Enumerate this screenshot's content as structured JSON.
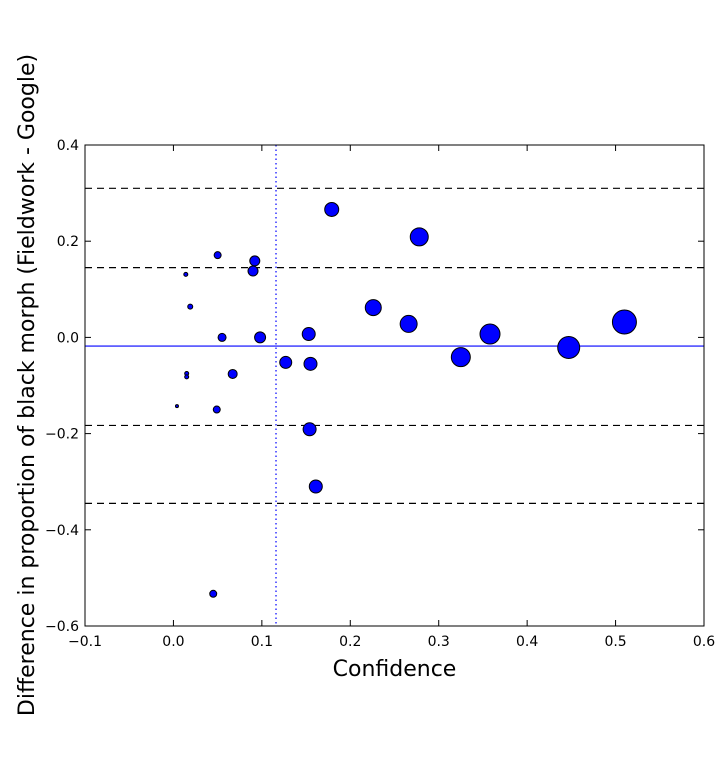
{
  "chart_data": {
    "type": "scatter",
    "title": "",
    "xlabel": "Confidence",
    "ylabel": "Difference in proportion of black morph (Fieldwork - Google)",
    "xlim": [
      -0.1,
      0.6
    ],
    "ylim": [
      -0.6,
      0.4
    ],
    "x_ticks": [
      -0.1,
      0.0,
      0.1,
      0.2,
      0.3,
      0.4,
      0.5,
      0.6
    ],
    "x_tick_labels": [
      "−0.1",
      "0.0",
      "0.1",
      "0.2",
      "0.3",
      "0.4",
      "0.5",
      "0.6"
    ],
    "y_ticks": [
      -0.6,
      -0.4,
      -0.2,
      0.0,
      0.2,
      0.4
    ],
    "y_tick_labels": [
      "−0.6",
      "−0.4",
      "−0.2",
      "0.0",
      "0.2",
      "0.4"
    ],
    "grid": false,
    "marker_color": "#0000ff",
    "points": [
      {
        "x": 0.004,
        "y": -0.143,
        "size": 1.5
      },
      {
        "x": 0.014,
        "y": 0.131,
        "size": 2
      },
      {
        "x": 0.015,
        "y": -0.075,
        "size": 2
      },
      {
        "x": 0.015,
        "y": -0.082,
        "size": 2
      },
      {
        "x": 0.019,
        "y": 0.064,
        "size": 2.5
      },
      {
        "x": 0.045,
        "y": -0.533,
        "size": 3.5
      },
      {
        "x": 0.049,
        "y": -0.15,
        "size": 3.5
      },
      {
        "x": 0.05,
        "y": 0.171,
        "size": 3.5
      },
      {
        "x": 0.055,
        "y": 0.0,
        "size": 4
      },
      {
        "x": 0.067,
        "y": -0.076,
        "size": 4.5
      },
      {
        "x": 0.09,
        "y": 0.138,
        "size": 5
      },
      {
        "x": 0.092,
        "y": 0.159,
        "size": 5
      },
      {
        "x": 0.098,
        "y": 0.0,
        "size": 5.5
      },
      {
        "x": 0.127,
        "y": -0.052,
        "size": 6
      },
      {
        "x": 0.153,
        "y": 0.007,
        "size": 6.5
      },
      {
        "x": 0.154,
        "y": -0.191,
        "size": 6.5
      },
      {
        "x": 0.155,
        "y": -0.055,
        "size": 6.5
      },
      {
        "x": 0.161,
        "y": -0.31,
        "size": 6.5
      },
      {
        "x": 0.179,
        "y": 0.266,
        "size": 7
      },
      {
        "x": 0.226,
        "y": 0.062,
        "size": 8
      },
      {
        "x": 0.266,
        "y": 0.028,
        "size": 8.5
      },
      {
        "x": 0.278,
        "y": 0.209,
        "size": 9
      },
      {
        "x": 0.325,
        "y": -0.041,
        "size": 9.5
      },
      {
        "x": 0.358,
        "y": 0.007,
        "size": 10
      },
      {
        "x": 0.447,
        "y": -0.021,
        "size": 11
      },
      {
        "x": 0.51,
        "y": 0.032,
        "size": 12
      }
    ],
    "mean_line": {
      "y": -0.018,
      "color": "#0000ff",
      "style": "solid"
    },
    "limit_lines": {
      "values": [
        0.31,
        0.145,
        -0.183,
        -0.345
      ],
      "color": "#000000",
      "style": "dashed"
    },
    "vertical_line": {
      "x": 0.116,
      "color": "#0000ff",
      "style": "dotted"
    }
  }
}
